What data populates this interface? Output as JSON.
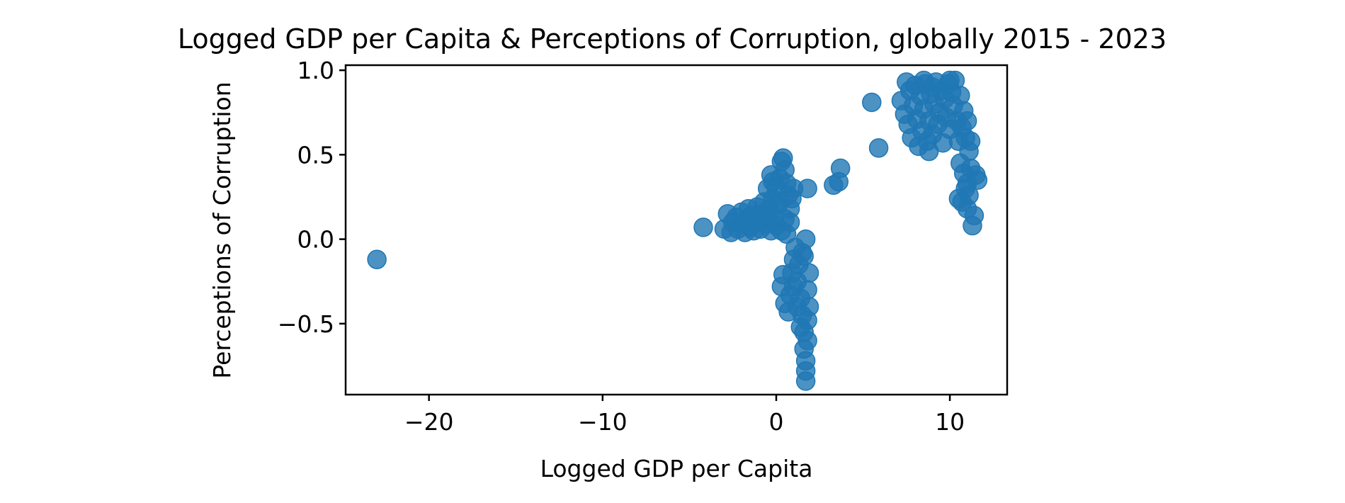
{
  "chart_data": {
    "type": "scatter",
    "title": "Logged GDP per Capita & Perceptions of Corruption, globally 2015 - 2023",
    "xlabel": "Logged GDP per Capita",
    "ylabel": "Perceptions of Corruption",
    "xlim": [
      -24.8,
      13.3
    ],
    "ylim": [
      -0.92,
      1.03
    ],
    "x_ticks": [
      -20,
      -10,
      0,
      10
    ],
    "x_tick_labels": [
      "−20",
      "−10",
      "0",
      "10"
    ],
    "y_ticks": [
      -0.5,
      0.0,
      0.5,
      1.0
    ],
    "y_tick_labels": [
      "−0.5",
      "0.0",
      "0.5",
      "1.0"
    ],
    "grid": false,
    "legend": "none",
    "marker_color": "#1f77b4",
    "points": [
      [
        -23.0,
        -0.12
      ],
      [
        -4.2,
        0.07
      ],
      [
        -3.0,
        0.06
      ],
      [
        -2.8,
        0.15
      ],
      [
        -2.6,
        0.04
      ],
      [
        -2.5,
        0.1
      ],
      [
        -2.3,
        0.13
      ],
      [
        -2.2,
        0.06
      ],
      [
        -2.0,
        0.16
      ],
      [
        -1.9,
        0.09
      ],
      [
        -1.8,
        0.04
      ],
      [
        -1.7,
        0.12
      ],
      [
        -1.6,
        0.18
      ],
      [
        -1.5,
        0.07
      ],
      [
        -1.4,
        0.14
      ],
      [
        -1.3,
        0.05
      ],
      [
        -1.2,
        0.1
      ],
      [
        -1.1,
        0.19
      ],
      [
        -1.0,
        0.12
      ],
      [
        -0.9,
        0.06
      ],
      [
        -0.8,
        0.15
      ],
      [
        -0.7,
        0.22
      ],
      [
        -0.6,
        0.09
      ],
      [
        -0.5,
        0.13
      ],
      [
        -0.4,
        0.18
      ],
      [
        -0.3,
        0.05
      ],
      [
        -0.2,
        0.24
      ],
      [
        -0.1,
        0.12
      ],
      [
        0.0,
        0.08
      ],
      [
        0.1,
        0.2
      ],
      [
        -0.5,
        0.3
      ],
      [
        -0.3,
        0.38
      ],
      [
        0.0,
        0.31
      ],
      [
        0.2,
        0.36
      ],
      [
        0.3,
        0.46
      ],
      [
        0.4,
        0.48
      ],
      [
        0.5,
        0.41
      ],
      [
        0.6,
        0.33
      ],
      [
        0.7,
        0.26
      ],
      [
        0.8,
        0.18
      ],
      [
        0.5,
        0.12
      ],
      [
        0.3,
        0.05
      ],
      [
        0.6,
        0.03
      ],
      [
        0.8,
        0.1
      ],
      [
        0.9,
        0.24
      ],
      [
        1.0,
        0.3
      ],
      [
        0.2,
        0.22
      ],
      [
        -0.2,
        0.34
      ],
      [
        0.3,
        -0.28
      ],
      [
        0.5,
        -0.38
      ],
      [
        0.7,
        -0.43
      ],
      [
        0.8,
        -0.33
      ],
      [
        0.9,
        -0.2
      ],
      [
        1.0,
        -0.12
      ],
      [
        1.1,
        -0.05
      ],
      [
        1.2,
        -0.25
      ],
      [
        1.3,
        -0.15
      ],
      [
        1.4,
        -0.35
      ],
      [
        1.5,
        -0.45
      ],
      [
        1.5,
        -0.08
      ],
      [
        1.6,
        -0.55
      ],
      [
        1.6,
        -0.65
      ],
      [
        1.7,
        -0.72
      ],
      [
        1.7,
        -0.78
      ],
      [
        1.7,
        -0.84
      ],
      [
        1.8,
        -0.6
      ],
      [
        1.8,
        -0.48
      ],
      [
        1.8,
        -0.3
      ],
      [
        1.9,
        -0.2
      ],
      [
        1.9,
        -0.4
      ],
      [
        1.7,
        0.0
      ],
      [
        1.6,
        -0.1
      ],
      [
        0.4,
        -0.21
      ],
      [
        1.0,
        -0.28
      ],
      [
        1.2,
        -0.4
      ],
      [
        1.4,
        -0.52
      ],
      [
        1.8,
        0.3
      ],
      [
        3.3,
        0.32
      ],
      [
        3.6,
        0.34
      ],
      [
        3.7,
        0.42
      ],
      [
        5.5,
        0.81
      ],
      [
        5.9,
        0.54
      ],
      [
        7.2,
        0.82
      ],
      [
        7.4,
        0.74
      ],
      [
        7.5,
        0.93
      ],
      [
        7.6,
        0.68
      ],
      [
        7.7,
        0.88
      ],
      [
        7.8,
        0.6
      ],
      [
        7.9,
        0.79
      ],
      [
        8.0,
        0.91
      ],
      [
        8.1,
        0.71
      ],
      [
        8.2,
        0.55
      ],
      [
        8.3,
        0.85
      ],
      [
        8.4,
        0.64
      ],
      [
        8.5,
        0.77
      ],
      [
        8.6,
        0.92
      ],
      [
        8.7,
        0.58
      ],
      [
        8.8,
        0.7
      ],
      [
        8.8,
        0.52
      ],
      [
        8.9,
        0.86
      ],
      [
        9.0,
        0.62
      ],
      [
        9.1,
        0.8
      ],
      [
        9.2,
        0.93
      ],
      [
        9.3,
        0.68
      ],
      [
        9.4,
        0.75
      ],
      [
        9.5,
        0.88
      ],
      [
        9.6,
        0.57
      ],
      [
        9.7,
        0.83
      ],
      [
        9.8,
        0.72
      ],
      [
        9.9,
        0.92
      ],
      [
        10.0,
        0.65
      ],
      [
        10.1,
        0.87
      ],
      [
        10.2,
        0.79
      ],
      [
        10.3,
        0.94
      ],
      [
        10.4,
        0.7
      ],
      [
        10.5,
        0.58
      ],
      [
        10.6,
        0.85
      ],
      [
        10.7,
        0.66
      ],
      [
        10.8,
        0.76
      ],
      [
        10.9,
        0.6
      ],
      [
        11.0,
        0.7
      ],
      [
        11.1,
        0.52
      ],
      [
        11.2,
        0.58
      ],
      [
        10.6,
        0.45
      ],
      [
        10.8,
        0.39
      ],
      [
        10.9,
        0.3
      ],
      [
        10.7,
        0.22
      ],
      [
        11.0,
        0.18
      ],
      [
        11.1,
        0.26
      ],
      [
        11.2,
        0.42
      ],
      [
        11.5,
        0.38
      ],
      [
        11.6,
        0.35
      ],
      [
        11.4,
        0.14
      ],
      [
        11.3,
        0.08
      ],
      [
        10.5,
        0.24
      ],
      [
        11.0,
        0.33
      ],
      [
        8.5,
        0.94
      ],
      [
        9.0,
        0.9
      ],
      [
        10.0,
        0.94
      ]
    ]
  }
}
